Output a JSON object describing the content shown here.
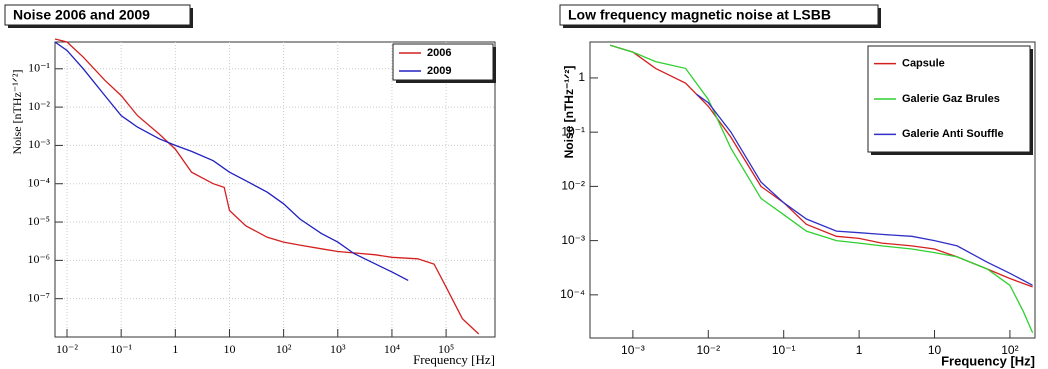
{
  "chart_data": [
    {
      "type": "line",
      "title": "Noise 2006 and 2009",
      "xlabel": "Frequency [Hz]",
      "ylabel": "Noise [nTHz⁻¹ᐟ²]",
      "log_x": true,
      "log_y": true,
      "grid": true,
      "legend": "upper right",
      "xlim": [
        0.006,
        800000
      ],
      "ylim": [
        1e-08,
        0.5
      ],
      "xticks": [
        {
          "value": 0.01,
          "label": "10⁻²"
        },
        {
          "value": 0.1,
          "label": "10⁻¹"
        },
        1,
        10,
        {
          "value": 100,
          "label": "10²"
        },
        {
          "value": 1000,
          "label": "10³"
        },
        {
          "value": 10000,
          "label": "10⁴"
        },
        {
          "value": 100000,
          "label": "10⁵"
        }
      ],
      "yticks": [
        {
          "value": 1e-07,
          "label": "10⁻⁷"
        },
        {
          "value": 1e-06,
          "label": "10⁻⁶"
        },
        {
          "value": 1e-05,
          "label": "10⁻⁵"
        },
        {
          "value": 0.0001,
          "label": "10⁻⁴"
        },
        {
          "value": 0.001,
          "label": "10⁻³"
        },
        {
          "value": 0.01,
          "label": "10⁻²"
        },
        {
          "value": 0.1,
          "label": "10⁻¹"
        }
      ],
      "series": [
        {
          "name": "2006",
          "color": "#d42020",
          "x": [
            0.006,
            0.01,
            0.02,
            0.05,
            0.1,
            0.2,
            0.5,
            1,
            2,
            5,
            8,
            10,
            20,
            50,
            100,
            200,
            500,
            1000,
            5000,
            10000,
            30000,
            60000,
            100000,
            200000,
            400000
          ],
          "values": [
            0.6,
            0.5,
            0.2,
            0.05,
            0.02,
            0.006,
            0.002,
            0.0008,
            0.0002,
            0.0001,
            8e-05,
            2e-05,
            8e-06,
            4e-06,
            3e-06,
            2.5e-06,
            2e-06,
            1.7e-06,
            1.4e-06,
            1.2e-06,
            1.1e-06,
            8e-07,
            2e-07,
            3e-08,
            1.2e-08
          ]
        },
        {
          "name": "2009",
          "color": "#2020c0",
          "x": [
            0.006,
            0.01,
            0.02,
            0.05,
            0.1,
            0.2,
            0.5,
            1,
            2,
            5,
            10,
            20,
            50,
            100,
            200,
            500,
            1000,
            2000,
            5000,
            10000,
            20000
          ],
          "values": [
            0.5,
            0.3,
            0.1,
            0.02,
            0.006,
            0.003,
            0.0015,
            0.001,
            0.0007,
            0.0004,
            0.0002,
            0.00012,
            6e-05,
            3e-05,
            1.2e-05,
            5e-06,
            3e-06,
            1.5e-06,
            8e-07,
            5e-07,
            3e-07
          ]
        }
      ]
    },
    {
      "type": "line",
      "title": "Low frequency magnetic noise at LSBB",
      "xlabel": "Frequency [Hz]",
      "ylabel": "Noise [nTHz⁻¹ᐟ²]",
      "log_x": true,
      "log_y": true,
      "grid": false,
      "legend": "upper right",
      "xlim": [
        0.00027,
        215
      ],
      "ylim": [
        1.6e-05,
        4.6
      ],
      "xticks": [
        {
          "value": 0.001,
          "label": "10⁻³"
        },
        {
          "value": 0.01,
          "label": "10⁻²"
        },
        {
          "value": 0.1,
          "label": "10⁻¹"
        },
        1,
        10,
        {
          "value": 100,
          "label": "10²"
        }
      ],
      "yticks": [
        {
          "value": 0.0001,
          "label": "10⁻⁴"
        },
        {
          "value": 0.001,
          "label": "10⁻³"
        },
        {
          "value": 0.01,
          "label": "10⁻²"
        },
        {
          "value": 0.1,
          "label": "10⁻¹"
        },
        1
      ],
      "series": [
        {
          "name": "Capsule",
          "color": "#d42020",
          "x": [
            0.0005,
            0.001,
            0.002,
            0.005,
            0.01,
            0.02,
            0.05,
            0.1,
            0.2,
            0.5,
            1,
            2,
            5,
            10,
            20,
            50,
            100,
            200
          ],
          "values": [
            4,
            3,
            1.5,
            0.8,
            0.3,
            0.08,
            0.01,
            0.005,
            0.002,
            0.0012,
            0.0011,
            0.0009,
            0.0008,
            0.0007,
            0.0005,
            0.0003,
            0.0002,
            0.00014
          ]
        },
        {
          "name": "Galerie Gaz Brules",
          "color": "#30d030",
          "x": [
            0.0005,
            0.001,
            0.002,
            0.005,
            0.01,
            0.02,
            0.05,
            0.1,
            0.2,
            0.5,
            1,
            2,
            5,
            10,
            20,
            50,
            100,
            150,
            200
          ],
          "values": [
            4,
            3,
            2,
            1.5,
            0.4,
            0.05,
            0.006,
            0.003,
            0.0015,
            0.001,
            0.0009,
            0.0008,
            0.0007,
            0.0006,
            0.0005,
            0.0003,
            0.00015,
            5e-05,
            2e-05
          ]
        },
        {
          "name": "Galerie Anti Souffle",
          "color": "#3030c8",
          "x": [
            0.007,
            0.01,
            0.02,
            0.05,
            0.1,
            0.2,
            0.5,
            1,
            2,
            5,
            10,
            20,
            50,
            100,
            200
          ],
          "values": [
            0.5,
            0.35,
            0.1,
            0.012,
            0.005,
            0.0025,
            0.0015,
            0.0014,
            0.0013,
            0.0012,
            0.001,
            0.0008,
            0.0004,
            0.00025,
            0.00015
          ]
        }
      ]
    }
  ]
}
